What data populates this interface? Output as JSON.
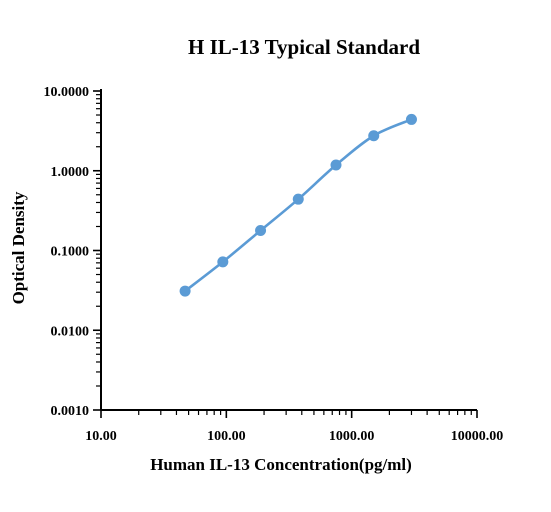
{
  "chart_data": {
    "type": "line",
    "title": "H IL-13 Typical Standard",
    "xlabel": "Human IL-13 Concentration(pg/ml)",
    "ylabel": "Optical Density",
    "xscale": "log",
    "yscale": "log",
    "xlim": [
      10,
      10000
    ],
    "ylim": [
      0.001,
      10
    ],
    "x_ticks": [
      10,
      100,
      1000,
      10000
    ],
    "x_tick_labels": [
      "10.00",
      "100.00",
      "1000.00",
      "10000.00"
    ],
    "y_ticks": [
      0.001,
      0.01,
      0.1,
      1,
      10
    ],
    "y_tick_labels": [
      "0.0010",
      "0.0100",
      "0.1000",
      "1.0000",
      "10.0000"
    ],
    "grid": false,
    "series": [
      {
        "x": [
          46.88,
          93.75,
          187.5,
          375,
          750,
          1500,
          3000
        ],
        "y": [
          0.031,
          0.072,
          0.178,
          0.44,
          1.18,
          2.75,
          4.4
        ],
        "color": "#5b9bd5"
      }
    ]
  }
}
